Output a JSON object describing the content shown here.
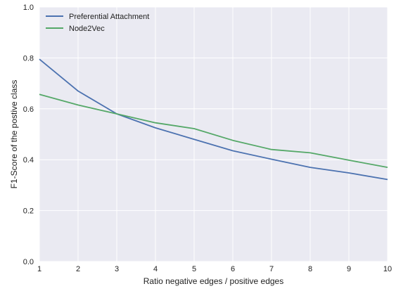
{
  "chart_data": {
    "type": "line",
    "title": "",
    "xlabel": "Ratio negative edges / positive edges",
    "ylabel": "F1-Score of the postive class",
    "xlim": [
      1,
      10
    ],
    "ylim": [
      0.0,
      1.0
    ],
    "x_ticks": [
      1,
      2,
      3,
      4,
      5,
      6,
      7,
      8,
      9,
      10
    ],
    "y_ticks": [
      0.0,
      0.2,
      0.4,
      0.6,
      0.8,
      1.0
    ],
    "y_tick_labels": [
      "0.0",
      "0.2",
      "0.4",
      "0.6",
      "0.8",
      "1.0"
    ],
    "grid": true,
    "legend_position": "top-left",
    "x": [
      1,
      2,
      3,
      4,
      5,
      6,
      7,
      8,
      9,
      10
    ],
    "series": [
      {
        "name": "Preferential Attachment",
        "color": "#4c72b0",
        "values": [
          0.795,
          0.67,
          0.58,
          0.525,
          0.48,
          0.435,
          0.402,
          0.37,
          0.348,
          0.322
        ]
      },
      {
        "name": "Node2Vec",
        "color": "#55a868",
        "values": [
          0.657,
          0.615,
          0.58,
          0.545,
          0.522,
          0.476,
          0.44,
          0.427,
          0.398,
          0.37
        ]
      }
    ],
    "colors": {
      "plot_background": "#eaeaf2",
      "grid": "#ffffff"
    }
  }
}
